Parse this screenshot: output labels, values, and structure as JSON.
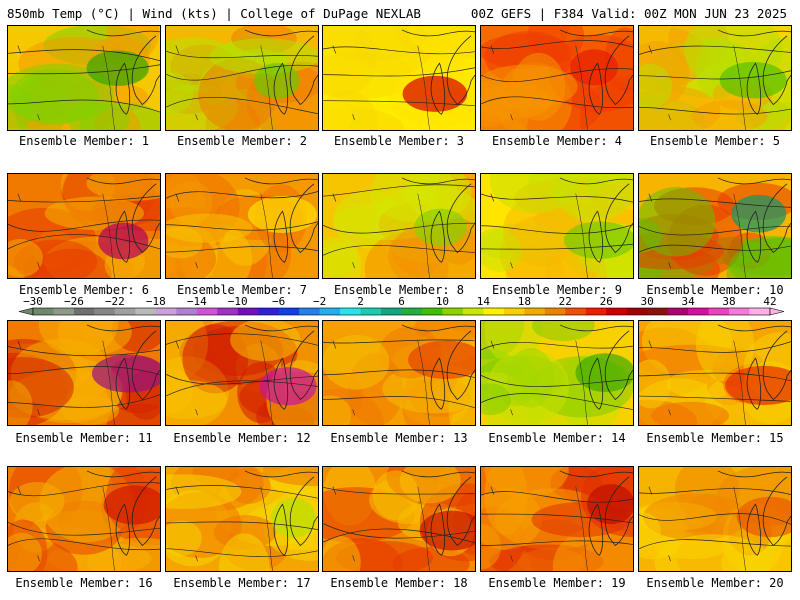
{
  "title": {
    "left": "850mb Temp (°C) | Wind (kts) | College of DuPage NEXLAB",
    "right": "00Z GEFS | F384 Valid: 00Z MON JUN 23 2025"
  },
  "members": [
    {
      "label": "Ensemble Member: 1",
      "palette": [
        "#f6c800",
        "#f29a00",
        "#7fd100",
        "#33a800"
      ]
    },
    {
      "label": "Ensemble Member: 2",
      "palette": [
        "#f5b800",
        "#f07a00",
        "#b7e000",
        "#6cc800"
      ]
    },
    {
      "label": "Ensemble Member: 3",
      "palette": [
        "#fff200",
        "#f8d800",
        "#ffe400",
        "#d80000"
      ]
    },
    {
      "label": "Ensemble Member: 4",
      "palette": [
        "#f36c00",
        "#ef3d00",
        "#f59300",
        "#e81d00"
      ]
    },
    {
      "label": "Ensemble Member: 5",
      "palette": [
        "#f8d400",
        "#f3a200",
        "#b8df00",
        "#59c100"
      ]
    },
    {
      "label": "Ensemble Member: 6",
      "palette": [
        "#f07a00",
        "#e63a00",
        "#f6b200",
        "#b4005c"
      ]
    },
    {
      "label": "Ensemble Member: 7",
      "palette": [
        "#f49a00",
        "#f07000",
        "#f7c300",
        "#fddf00"
      ]
    },
    {
      "label": "Ensemble Member: 8",
      "palette": [
        "#f7c400",
        "#f29200",
        "#d6e600",
        "#8bcf00"
      ]
    },
    {
      "label": "Ensemble Member: 9",
      "palette": [
        "#ffe500",
        "#f5b900",
        "#c6e200",
        "#78cb00"
      ]
    },
    {
      "label": "Ensemble Member: 10",
      "palette": [
        "#f7b400",
        "#e83d00",
        "#64c000",
        "#12946b"
      ]
    },
    {
      "label": "Ensemble Member: 11",
      "palette": [
        "#f07b00",
        "#d42200",
        "#f6ae00",
        "#9a0f80"
      ]
    },
    {
      "label": "Ensemble Member: 12",
      "palette": [
        "#f29000",
        "#d21b00",
        "#f8c000",
        "#c8159c"
      ]
    },
    {
      "label": "Ensemble Member: 13",
      "palette": [
        "#f3a000",
        "#f07a00",
        "#f6c000",
        "#e54400"
      ]
    },
    {
      "label": "Ensemble Member: 14",
      "palette": [
        "#f8d200",
        "#c4e000",
        "#80cc00",
        "#3eaa00"
      ]
    },
    {
      "label": "Ensemble Member: 15",
      "palette": [
        "#f5a400",
        "#f07000",
        "#f8d000",
        "#e52c00"
      ]
    },
    {
      "label": "Ensemble Member: 16",
      "palette": [
        "#f07d00",
        "#e84400",
        "#f6b000",
        "#d01800"
      ]
    },
    {
      "label": "Ensemble Member: 17",
      "palette": [
        "#f3a600",
        "#f07600",
        "#f8d600",
        "#b8df00"
      ]
    },
    {
      "label": "Ensemble Member: 18",
      "palette": [
        "#f48c00",
        "#e53a00",
        "#f7c000",
        "#c81400"
      ]
    },
    {
      "label": "Ensemble Member: 19",
      "palette": [
        "#f07000",
        "#e23000",
        "#f5a000",
        "#c00e00"
      ]
    },
    {
      "label": "Ensemble Member: 20",
      "palette": [
        "#f6b400",
        "#f18800",
        "#f9d400",
        "#ea5a00"
      ]
    }
  ],
  "colorbar": {
    "ticks": [
      "-30",
      "-26",
      "-22",
      "-18",
      "-14",
      "-10",
      "-6",
      "-2",
      "2",
      "6",
      "10",
      "14",
      "18",
      "22",
      "26",
      "30",
      "34",
      "38",
      "42"
    ],
    "colors": [
      "#6f8a6b",
      "#8c9a88",
      "#6f7070",
      "#878787",
      "#a0a0a0",
      "#b9b9b9",
      "#c9a0d8",
      "#b080d0",
      "#d050d8",
      "#a030c8",
      "#7010c0",
      "#3020d0",
      "#1040e0",
      "#2080f0",
      "#20b0f0",
      "#30e0e8",
      "#20c8b0",
      "#10a880",
      "#20b040",
      "#40c000",
      "#8cd200",
      "#c8e600",
      "#fff000",
      "#f8d000",
      "#f4a800",
      "#f08000",
      "#ec5000",
      "#e82000",
      "#c80000",
      "#a00000",
      "#901010",
      "#b00070",
      "#d010a0",
      "#f040c0",
      "#f878d8",
      "#ffb0e8"
    ]
  }
}
